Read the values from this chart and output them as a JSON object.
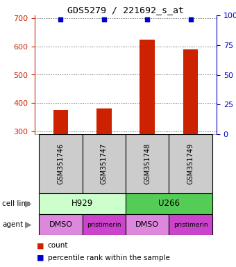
{
  "title": "GDS5279 / 221692_s_at",
  "samples": [
    "GSM351746",
    "GSM351747",
    "GSM351748",
    "GSM351749"
  ],
  "counts": [
    375,
    382,
    625,
    590
  ],
  "percentiles": [
    99,
    99,
    99,
    99
  ],
  "ylim_left": [
    290,
    710
  ],
  "ylim_right": [
    0,
    100
  ],
  "yticks_left": [
    300,
    400,
    500,
    600,
    700
  ],
  "yticks_right": [
    0,
    25,
    50,
    75,
    100
  ],
  "yticks_right_labels": [
    "0",
    "25",
    "50",
    "75",
    "100%"
  ],
  "bar_color": "#cc2200",
  "dot_color": "#0000cc",
  "bar_width": 0.35,
  "cell_line_colors": {
    "H929": "#ccffcc",
    "U266": "#55cc55"
  },
  "agents": [
    "DMSO",
    "pristimerin",
    "DMSO",
    "pristimerin"
  ],
  "agent_colors": {
    "DMSO": "#dd88dd",
    "pristimerin": "#cc44cc"
  },
  "bg_color": "#ffffff",
  "sample_box_color": "#cccccc",
  "left_axis_color": "#cc2200",
  "right_axis_color": "#0000cc",
  "grid_color": "#555555"
}
